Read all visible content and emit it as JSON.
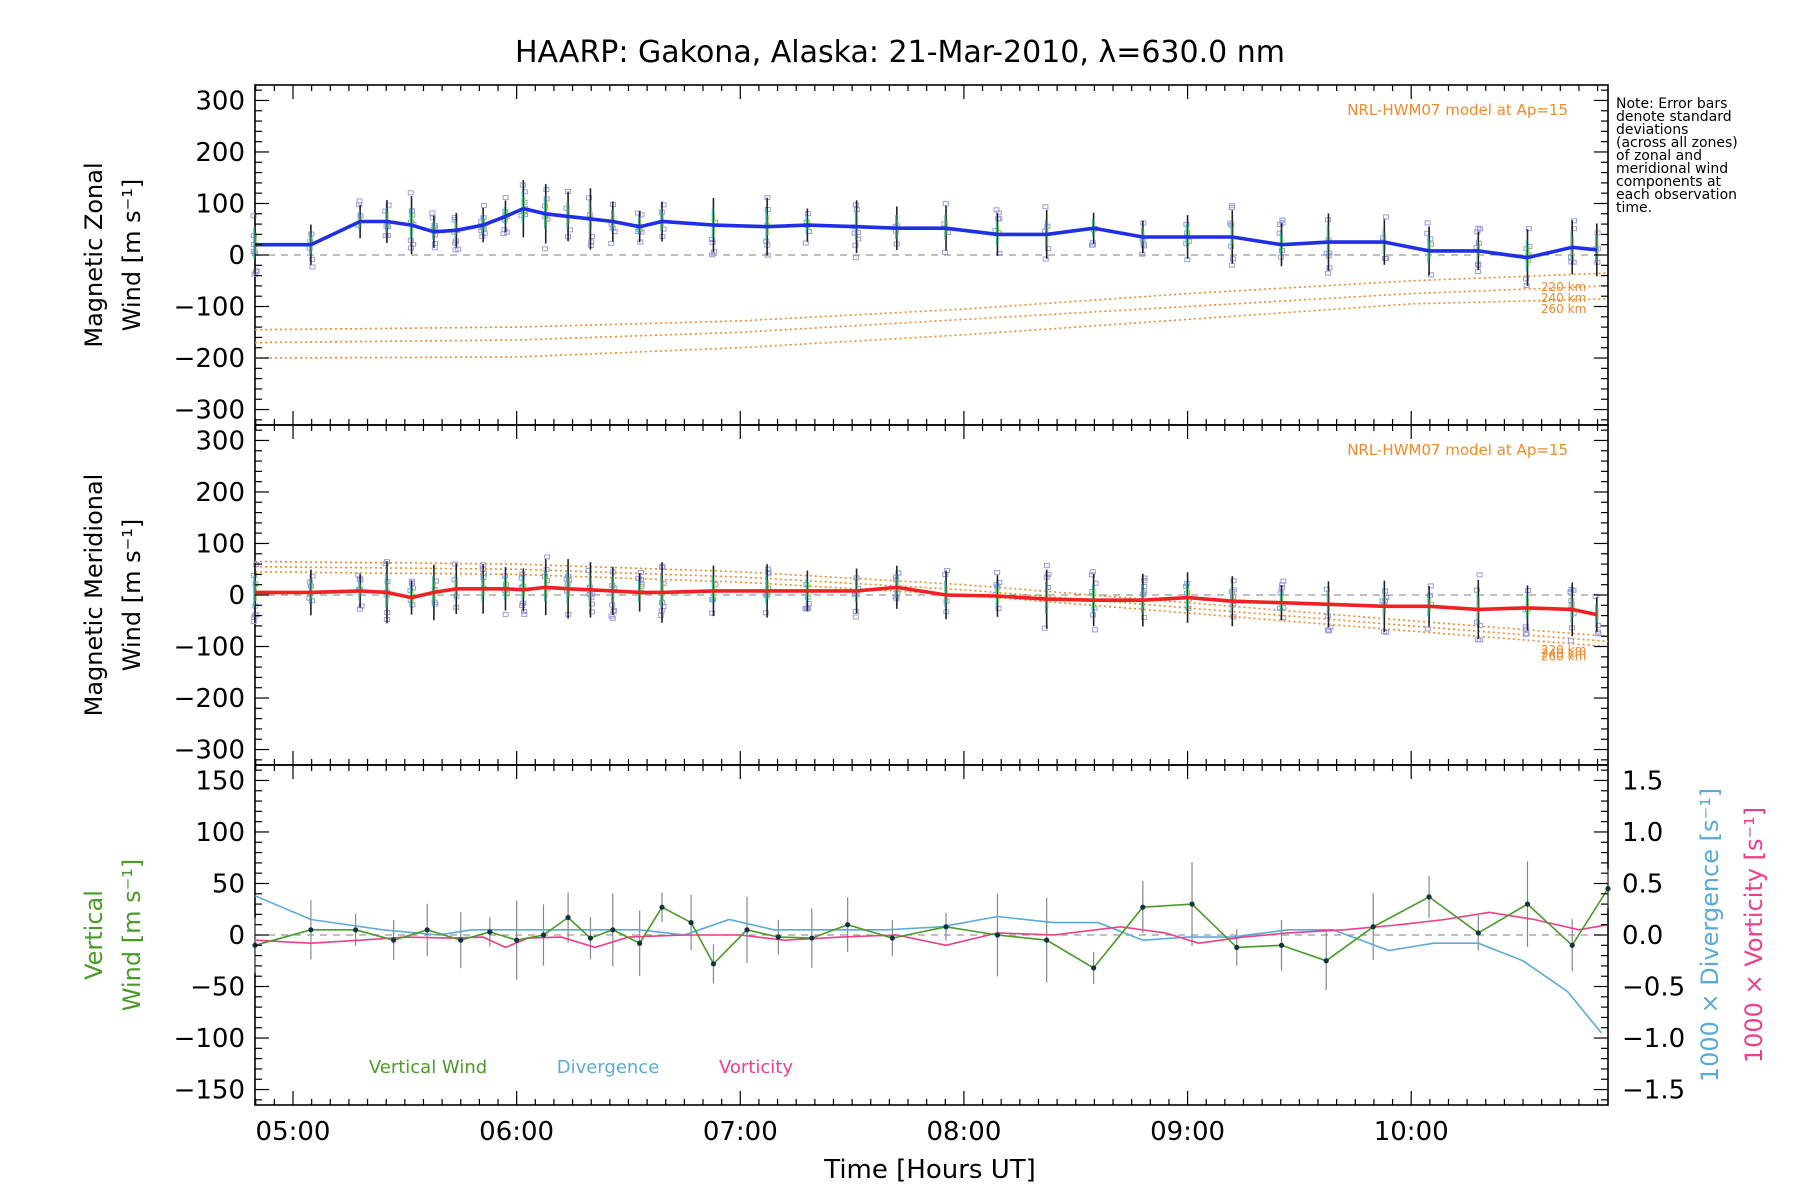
{
  "title": "HAARP: Gakona,  Alaska: 21-Mar-2010, λ=630.0 nm",
  "note": [
    "Note: Error bars",
    "denote standard",
    "deviations",
    "(across all zones)",
    "of zonal and",
    "meridional wind",
    "components at",
    "each observation",
    "time."
  ],
  "xlabel": "Time [Hours UT]",
  "xticks": [
    "05:00",
    "06:00",
    "07:00",
    "08:00",
    "09:00",
    "10:00"
  ],
  "colors": {
    "zonal": "#1f2fe6",
    "meridional": "#ee2222",
    "model": "#f08a2a",
    "vertical": "#4a9a28",
    "divergence": "#5aaad8",
    "vorticity": "#ee3d8a",
    "scatter": "#9a9ae0"
  },
  "chart_data": [
    {
      "type": "line",
      "panel": "zonal",
      "ylabel": [
        "Magnetic Zonal",
        "Wind [m s⁻¹]"
      ],
      "ylim": [
        -330,
        330
      ],
      "yticks": [
        "300",
        "200",
        "100",
        "0",
        "−100",
        "−200",
        "−300"
      ],
      "model_label": "NRL-HWM07 model at Ap=15",
      "model_alt_labels": [
        "220 km",
        "240 km",
        "260 km"
      ],
      "x": [
        4.83,
        5.08,
        5.3,
        5.42,
        5.53,
        5.63,
        5.73,
        5.85,
        5.95,
        6.03,
        6.13,
        6.23,
        6.33,
        6.43,
        6.55,
        6.65,
        6.88,
        7.12,
        7.3,
        7.52,
        7.7,
        7.92,
        8.15,
        8.37,
        8.58,
        8.8,
        9.0,
        9.2,
        9.42,
        9.63,
        9.88,
        10.08,
        10.3,
        10.52,
        10.72,
        10.83
      ],
      "series": [
        {
          "values": [
            20,
            20,
            65,
            65,
            58,
            45,
            48,
            58,
            75,
            90,
            80,
            75,
            70,
            65,
            55,
            65,
            58,
            55,
            58,
            55,
            52,
            52,
            40,
            40,
            52,
            35,
            35,
            35,
            20,
            25,
            25,
            8,
            8,
            -5,
            15,
            10
          ]
        }
      ],
      "model": [
        {
          "name": "220 km",
          "x": [
            4.83,
            6.0,
            7.0,
            8.0,
            9.0,
            10.0,
            10.88
          ],
          "values": [
            -145,
            -140,
            -128,
            -105,
            -75,
            -50,
            -35
          ]
        },
        {
          "name": "240 km",
          "x": [
            4.83,
            6.0,
            7.0,
            8.0,
            9.0,
            10.0,
            10.88
          ],
          "values": [
            -170,
            -165,
            -150,
            -125,
            -100,
            -75,
            -60
          ]
        },
        {
          "name": "260 km",
          "x": [
            4.83,
            6.0,
            7.0,
            8.0,
            9.0,
            10.0,
            10.88
          ],
          "values": [
            -200,
            -198,
            -180,
            -155,
            -125,
            -95,
            -85
          ]
        }
      ]
    },
    {
      "type": "line",
      "panel": "meridional",
      "ylabel": [
        "Magnetic Meridional",
        "Wind [m s⁻¹]"
      ],
      "ylim": [
        -330,
        330
      ],
      "yticks": [
        "300",
        "200",
        "100",
        "0",
        "−100",
        "−200",
        "−300"
      ],
      "model_label": "NRL-HWM07 model at Ap=15",
      "model_alt_labels": [
        "220 km",
        "240 km",
        "260 km"
      ],
      "x": [
        4.83,
        5.08,
        5.3,
        5.42,
        5.53,
        5.63,
        5.73,
        5.85,
        5.95,
        6.03,
        6.13,
        6.23,
        6.33,
        6.43,
        6.55,
        6.65,
        6.88,
        7.12,
        7.3,
        7.52,
        7.7,
        7.92,
        8.15,
        8.37,
        8.58,
        8.8,
        9.0,
        9.2,
        9.42,
        9.63,
        9.88,
        10.08,
        10.3,
        10.52,
        10.72,
        10.83
      ],
      "series": [
        {
          "values": [
            5,
            5,
            8,
            5,
            -5,
            5,
            12,
            12,
            12,
            10,
            15,
            12,
            10,
            8,
            5,
            5,
            8,
            8,
            8,
            8,
            15,
            0,
            -2,
            -8,
            -10,
            -10,
            -5,
            -12,
            -15,
            -18,
            -22,
            -22,
            -28,
            -25,
            -28,
            -38
          ]
        }
      ],
      "model": [
        {
          "name": "220 km",
          "x": [
            4.83,
            6.0,
            7.0,
            8.0,
            9.0,
            10.0,
            10.88
          ],
          "values": [
            65,
            60,
            45,
            20,
            -15,
            -50,
            -80
          ]
        },
        {
          "name": "240 km",
          "x": [
            4.83,
            6.0,
            7.0,
            8.0,
            9.0,
            10.0,
            10.88
          ],
          "values": [
            55,
            50,
            35,
            10,
            -25,
            -60,
            -90
          ]
        },
        {
          "name": "260 km",
          "x": [
            4.83,
            6.0,
            7.0,
            8.0,
            9.0,
            10.0,
            10.88
          ],
          "values": [
            45,
            40,
            25,
            0,
            -35,
            -70,
            -100
          ]
        }
      ]
    },
    {
      "type": "line",
      "panel": "vertical",
      "ylabel": [
        "Vertical",
        "Wind [m s⁻¹]"
      ],
      "ylim": [
        -165,
        165
      ],
      "yticks": [
        "150",
        "100",
        "50",
        "0",
        "−50",
        "−100",
        "−150"
      ],
      "y2label_div": "1000 × Divergence [s⁻¹]",
      "y2label_vort": "1000 × Vorticity [s⁻¹]",
      "y2lim": [
        -1.65,
        1.65
      ],
      "y2ticks": [
        "1.5",
        "1.0",
        "0.5",
        "0.0",
        "−0.5",
        "−1.0",
        "−1.5"
      ],
      "legend": [
        "Vertical Wind",
        "Divergence",
        "Vorticity"
      ],
      "series": [
        {
          "name": "Vertical Wind",
          "x": [
            4.83,
            5.08,
            5.28,
            5.45,
            5.6,
            5.75,
            5.88,
            6.0,
            6.12,
            6.23,
            6.33,
            6.43,
            6.55,
            6.65,
            6.78,
            6.88,
            7.03,
            7.17,
            7.32,
            7.48,
            7.68,
            7.92,
            8.15,
            8.37,
            8.58,
            8.8,
            9.02,
            9.22,
            9.42,
            9.62,
            9.83,
            10.08,
            10.3,
            10.52,
            10.72,
            10.88
          ],
          "values": [
            -10,
            5,
            5,
            -5,
            5,
            -5,
            3,
            -5,
            0,
            17,
            -3,
            5,
            -8,
            27,
            12,
            -28,
            5,
            -2,
            -3,
            10,
            -3,
            8,
            0,
            -5,
            -32,
            27,
            30,
            -12,
            -10,
            -25,
            8,
            37,
            2,
            30,
            -10,
            45
          ]
        },
        {
          "name": "Divergence",
          "x": [
            4.83,
            5.08,
            5.4,
            5.65,
            5.8,
            6.0,
            6.2,
            6.35,
            6.55,
            6.75,
            6.95,
            7.15,
            7.4,
            7.65,
            7.9,
            8.15,
            8.4,
            8.6,
            8.8,
            9.0,
            9.2,
            9.45,
            9.65,
            9.9,
            10.1,
            10.3,
            10.5,
            10.7,
            10.85
          ],
          "values": [
            0.38,
            0.15,
            0.05,
            0.0,
            0.05,
            0.05,
            0.05,
            0.05,
            0.05,
            0.0,
            0.15,
            0.05,
            0.05,
            0.05,
            0.08,
            0.18,
            0.12,
            0.12,
            -0.05,
            -0.02,
            -0.02,
            0.05,
            0.05,
            -0.15,
            -0.08,
            -0.08,
            -0.25,
            -0.55,
            -0.95
          ]
        },
        {
          "name": "Vorticity",
          "x": [
            4.83,
            5.08,
            5.3,
            5.5,
            5.7,
            5.85,
            5.95,
            6.05,
            6.2,
            6.35,
            6.5,
            6.75,
            7.0,
            7.2,
            7.45,
            7.7,
            7.92,
            8.15,
            8.4,
            8.7,
            8.9,
            9.05,
            9.25,
            9.45,
            9.7,
            9.95,
            10.15,
            10.35,
            10.55,
            10.75,
            10.88
          ],
          "values": [
            -0.05,
            -0.08,
            -0.05,
            -0.02,
            -0.03,
            -0.02,
            -0.12,
            -0.03,
            -0.02,
            -0.12,
            -0.02,
            0.0,
            0.0,
            -0.05,
            -0.02,
            0.0,
            -0.1,
            0.02,
            0.0,
            0.08,
            0.02,
            -0.08,
            -0.02,
            0.02,
            0.05,
            0.1,
            0.15,
            0.22,
            0.15,
            0.05,
            0.1
          ]
        }
      ]
    }
  ]
}
